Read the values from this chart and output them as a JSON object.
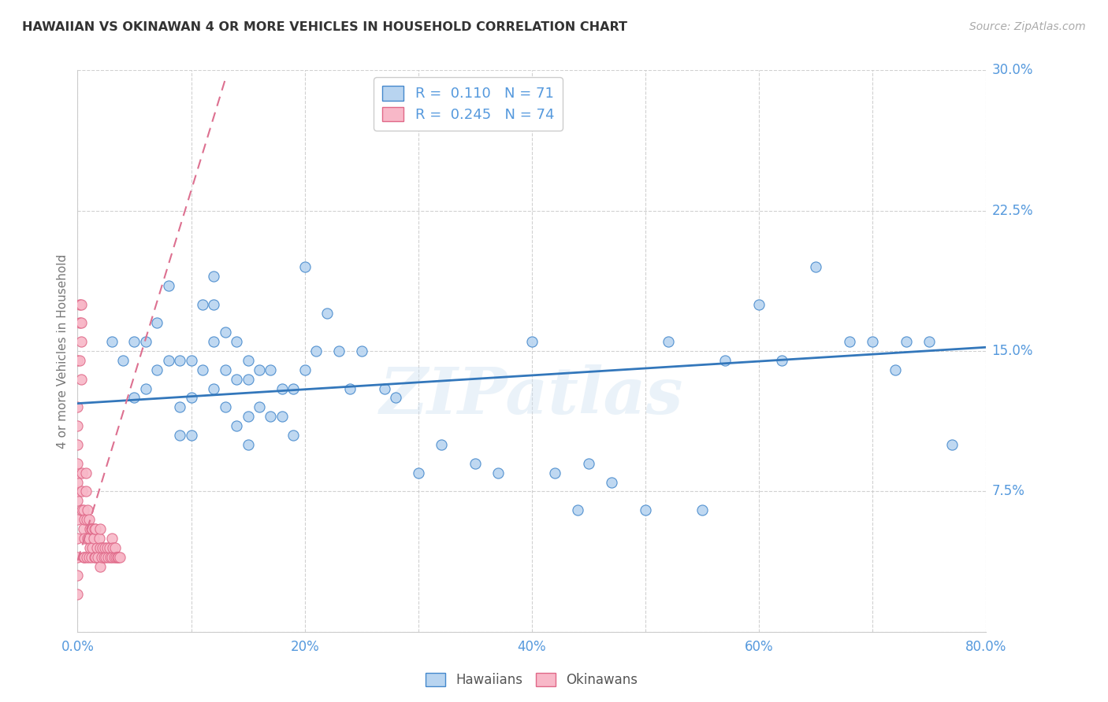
{
  "title": "HAWAIIAN VS OKINAWAN 4 OR MORE VEHICLES IN HOUSEHOLD CORRELATION CHART",
  "source": "Source: ZipAtlas.com",
  "ylabel": "4 or more Vehicles in Household",
  "watermark": "ZIPatlas",
  "xlim": [
    0.0,
    0.8
  ],
  "ylim": [
    0.0,
    0.3
  ],
  "xticks": [
    0.0,
    0.1,
    0.2,
    0.3,
    0.4,
    0.5,
    0.6,
    0.7,
    0.8
  ],
  "xticklabels": [
    "0.0%",
    "",
    "20%",
    "",
    "40%",
    "",
    "60%",
    "",
    "80.0%"
  ],
  "yticks": [
    0.0,
    0.075,
    0.15,
    0.225,
    0.3
  ],
  "yticklabels": [
    "",
    "7.5%",
    "15.0%",
    "22.5%",
    "30.0%"
  ],
  "hawaiians_R": 0.11,
  "hawaiians_N": 71,
  "okinawans_R": 0.245,
  "okinawans_N": 74,
  "blue_fill": "#b8d4f0",
  "blue_edge": "#4488cc",
  "pink_fill": "#f8b8c8",
  "pink_edge": "#e06888",
  "blue_line": "#3377bb",
  "pink_line": "#dd7090",
  "tick_color": "#5599dd",
  "grid_color": "#cccccc",
  "bg_color": "#ffffff",
  "hawaiians_x": [
    0.03,
    0.04,
    0.05,
    0.05,
    0.06,
    0.06,
    0.07,
    0.07,
    0.08,
    0.08,
    0.09,
    0.09,
    0.09,
    0.1,
    0.1,
    0.1,
    0.11,
    0.11,
    0.12,
    0.12,
    0.12,
    0.12,
    0.13,
    0.13,
    0.13,
    0.14,
    0.14,
    0.14,
    0.15,
    0.15,
    0.15,
    0.15,
    0.16,
    0.16,
    0.17,
    0.17,
    0.18,
    0.18,
    0.19,
    0.19,
    0.2,
    0.2,
    0.21,
    0.22,
    0.23,
    0.24,
    0.25,
    0.27,
    0.28,
    0.3,
    0.32,
    0.35,
    0.37,
    0.4,
    0.42,
    0.44,
    0.45,
    0.47,
    0.5,
    0.52,
    0.55,
    0.57,
    0.6,
    0.62,
    0.65,
    0.68,
    0.7,
    0.72,
    0.73,
    0.75,
    0.77
  ],
  "hawaiians_y": [
    0.155,
    0.145,
    0.155,
    0.125,
    0.155,
    0.13,
    0.165,
    0.14,
    0.185,
    0.145,
    0.145,
    0.12,
    0.105,
    0.145,
    0.125,
    0.105,
    0.175,
    0.14,
    0.19,
    0.175,
    0.155,
    0.13,
    0.16,
    0.14,
    0.12,
    0.155,
    0.135,
    0.11,
    0.145,
    0.135,
    0.115,
    0.1,
    0.14,
    0.12,
    0.14,
    0.115,
    0.13,
    0.115,
    0.13,
    0.105,
    0.195,
    0.14,
    0.15,
    0.17,
    0.15,
    0.13,
    0.15,
    0.13,
    0.125,
    0.085,
    0.1,
    0.09,
    0.085,
    0.155,
    0.085,
    0.065,
    0.09,
    0.08,
    0.065,
    0.155,
    0.065,
    0.145,
    0.175,
    0.145,
    0.195,
    0.155,
    0.155,
    0.14,
    0.155,
    0.155,
    0.1
  ],
  "okinawans_x": [
    0.0,
    0.0,
    0.0,
    0.0,
    0.0,
    0.0,
    0.0,
    0.0,
    0.0,
    0.0,
    0.0,
    0.0,
    0.0,
    0.0,
    0.002,
    0.002,
    0.002,
    0.003,
    0.003,
    0.003,
    0.003,
    0.004,
    0.004,
    0.004,
    0.005,
    0.005,
    0.005,
    0.006,
    0.006,
    0.006,
    0.007,
    0.007,
    0.008,
    0.008,
    0.009,
    0.009,
    0.01,
    0.01,
    0.01,
    0.011,
    0.011,
    0.012,
    0.012,
    0.013,
    0.013,
    0.014,
    0.015,
    0.015,
    0.016,
    0.016,
    0.017,
    0.018,
    0.019,
    0.02,
    0.02,
    0.02,
    0.021,
    0.022,
    0.023,
    0.024,
    0.025,
    0.026,
    0.027,
    0.028,
    0.029,
    0.03,
    0.03,
    0.031,
    0.032,
    0.033,
    0.034,
    0.035,
    0.036,
    0.037
  ],
  "okinawans_y": [
    0.02,
    0.03,
    0.04,
    0.05,
    0.06,
    0.07,
    0.075,
    0.08,
    0.085,
    0.09,
    0.1,
    0.11,
    0.12,
    0.145,
    0.145,
    0.165,
    0.175,
    0.135,
    0.155,
    0.165,
    0.175,
    0.065,
    0.075,
    0.085,
    0.04,
    0.055,
    0.065,
    0.04,
    0.05,
    0.06,
    0.075,
    0.085,
    0.04,
    0.06,
    0.05,
    0.065,
    0.04,
    0.05,
    0.06,
    0.045,
    0.055,
    0.04,
    0.055,
    0.045,
    0.055,
    0.05,
    0.04,
    0.055,
    0.04,
    0.055,
    0.045,
    0.04,
    0.05,
    0.035,
    0.045,
    0.055,
    0.04,
    0.045,
    0.04,
    0.045,
    0.04,
    0.045,
    0.04,
    0.045,
    0.04,
    0.04,
    0.05,
    0.045,
    0.04,
    0.045,
    0.04,
    0.04,
    0.04,
    0.04
  ],
  "blue_trend_x0": 0.0,
  "blue_trend_x1": 0.8,
  "blue_trend_y0": 0.122,
  "blue_trend_y1": 0.152,
  "pink_trend_x0": 0.0,
  "pink_trend_x1": 0.13,
  "pink_trend_y0": 0.038,
  "pink_trend_y1": 0.295
}
